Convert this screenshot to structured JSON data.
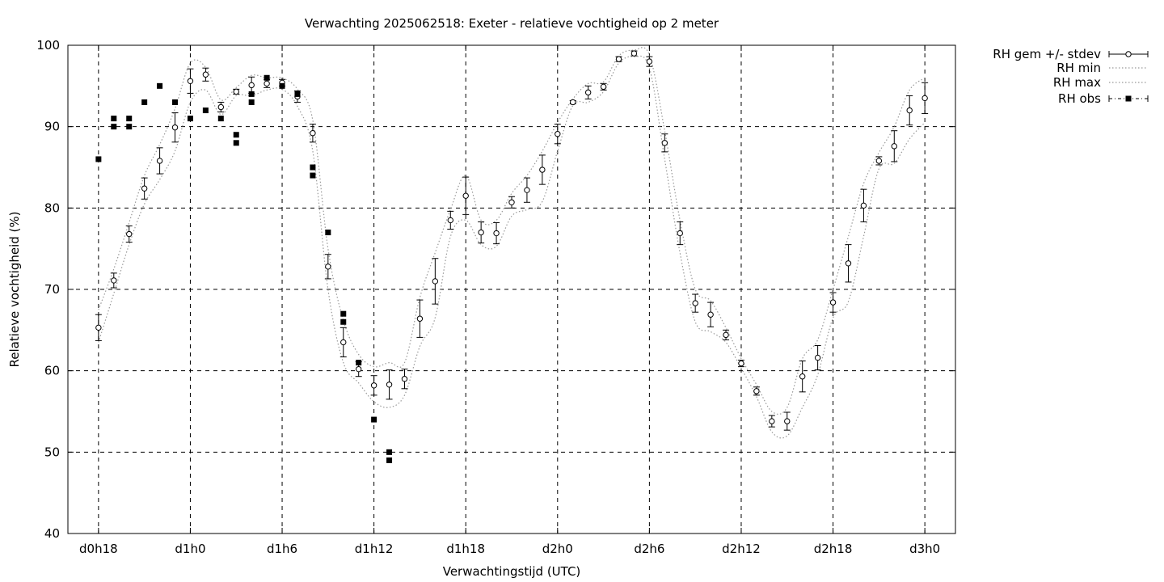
{
  "chart_data": {
    "type": "line",
    "title": "Verwachting 2025062518: Exeter - relatieve vochtigheid op 2 meter",
    "xlabel": "Verwachtingstijd (UTC)",
    "ylabel": "Relatieve vochtigheid (%)",
    "ylim": [
      40,
      100
    ],
    "yticks": [
      40,
      50,
      60,
      70,
      80,
      90,
      100
    ],
    "xlim": [
      -2,
      56
    ],
    "xticks": [
      {
        "x": 0,
        "label": "d0h18"
      },
      {
        "x": 6,
        "label": "d1h0"
      },
      {
        "x": 12,
        "label": "d1h6"
      },
      {
        "x": 18,
        "label": "d1h12"
      },
      {
        "x": 24,
        "label": "d1h18"
      },
      {
        "x": 30,
        "label": "d2h0"
      },
      {
        "x": 36,
        "label": "d2h6"
      },
      {
        "x": 42,
        "label": "d2h12"
      },
      {
        "x": 48,
        "label": "d2h18"
      },
      {
        "x": 54,
        "label": "d3h0"
      }
    ],
    "grid": true,
    "legend_position": "outside-top-right",
    "series": [
      {
        "name": "RH gem +/- stdev",
        "style": "errorbars",
        "color": "#000000",
        "x": [
          0,
          1,
          2,
          3,
          4,
          5,
          6,
          7,
          8,
          9,
          10,
          11,
          12,
          13,
          14,
          15,
          16,
          17,
          18,
          19,
          20,
          21,
          22,
          23,
          24,
          25,
          26,
          27,
          28,
          29,
          30,
          31,
          32,
          33,
          34,
          35,
          36,
          37,
          38,
          39,
          40,
          41,
          42,
          43,
          44,
          45,
          46,
          47,
          48,
          49,
          50,
          51,
          52,
          53,
          54
        ],
        "mean": [
          65.3,
          71.1,
          76.8,
          82.4,
          85.8,
          89.9,
          95.6,
          96.4,
          92.4,
          94.3,
          95.1,
          95.3,
          95.4,
          93.7,
          89.2,
          72.8,
          63.5,
          60.2,
          58.2,
          58.3,
          59.0,
          66.4,
          71.0,
          78.5,
          81.5,
          77.0,
          76.9,
          80.7,
          82.2,
          84.7,
          89.1,
          93.0,
          94.2,
          94.9,
          98.3,
          99.0,
          98.0,
          88.0,
          76.9,
          68.3,
          66.9,
          64.4,
          60.9,
          57.5,
          53.8,
          53.8,
          59.3,
          61.6,
          68.4,
          73.2,
          80.3,
          85.8,
          87.6,
          92.0,
          93.5
        ],
        "stdev": [
          1.6,
          0.9,
          1.0,
          1.3,
          1.6,
          1.8,
          1.5,
          0.8,
          0.6,
          0.3,
          1.0,
          0.5,
          0.4,
          0.7,
          1.1,
          1.5,
          1.8,
          0.9,
          1.2,
          1.8,
          1.2,
          2.3,
          2.8,
          1.1,
          2.3,
          1.3,
          1.3,
          0.7,
          1.5,
          1.8,
          1.2,
          0.2,
          0.8,
          0.4,
          0.3,
          0.3,
          0.6,
          1.1,
          1.4,
          1.1,
          1.5,
          0.6,
          0.4,
          0.5,
          0.7,
          1.1,
          1.9,
          1.5,
          1.2,
          2.3,
          2.0,
          0.5,
          1.9,
          1.8,
          1.9
        ]
      },
      {
        "name": "RH min",
        "style": "dotted",
        "color": "#999999",
        "x": [
          0,
          1,
          2,
          3,
          4,
          5,
          6,
          7,
          8,
          9,
          10,
          11,
          12,
          13,
          14,
          15,
          16,
          17,
          18,
          19,
          20,
          21,
          22,
          23,
          24,
          25,
          26,
          27,
          28,
          29,
          30,
          31,
          32,
          33,
          34,
          35,
          36,
          37,
          38,
          39,
          40,
          41,
          42,
          43,
          44,
          45,
          46,
          47,
          48,
          49,
          50,
          51,
          52,
          53,
          54
        ],
        "values": [
          63.5,
          69.5,
          75.5,
          80.5,
          83.5,
          87.0,
          93.0,
          94.5,
          91.5,
          93.8,
          93.8,
          94.5,
          94.6,
          92.5,
          87.0,
          70.0,
          61.0,
          58.5,
          56.2,
          55.5,
          57.0,
          63.0,
          66.5,
          76.5,
          78.5,
          75.5,
          75.3,
          79.0,
          79.8,
          80.8,
          87.0,
          92.6,
          93.0,
          94.3,
          97.8,
          98.6,
          97.2,
          86.0,
          74.5,
          66.0,
          64.8,
          63.5,
          60.3,
          56.8,
          52.5,
          52.0,
          55.5,
          59.5,
          66.5,
          68.5,
          76.5,
          84.8,
          85.5,
          88.5,
          90.5
        ]
      },
      {
        "name": "RH max",
        "style": "dotted",
        "color": "#999999",
        "x": [
          0,
          1,
          2,
          3,
          4,
          5,
          6,
          7,
          8,
          9,
          10,
          11,
          12,
          13,
          14,
          15,
          16,
          17,
          18,
          19,
          20,
          21,
          22,
          23,
          24,
          25,
          26,
          27,
          28,
          29,
          30,
          31,
          32,
          33,
          34,
          35,
          36,
          37,
          38,
          39,
          40,
          41,
          42,
          43,
          44,
          45,
          46,
          47,
          48,
          49,
          50,
          51,
          52,
          53,
          54
        ],
        "values": [
          67.5,
          72.5,
          78.2,
          84.0,
          87.8,
          92.2,
          97.8,
          97.3,
          93.3,
          94.8,
          96.3,
          96.0,
          96.0,
          94.6,
          90.8,
          75.0,
          66.2,
          62.0,
          60.5,
          61.0,
          61.0,
          69.0,
          74.5,
          79.8,
          84.0,
          78.5,
          78.5,
          81.8,
          84.0,
          87.0,
          90.5,
          93.4,
          95.3,
          95.5,
          98.7,
          99.4,
          98.8,
          89.5,
          78.5,
          70.0,
          68.6,
          65.3,
          61.5,
          58.3,
          55.0,
          55.5,
          61.5,
          63.8,
          70.0,
          76.5,
          83.0,
          86.8,
          90.0,
          94.5,
          96.0
        ]
      },
      {
        "name": "RH obs",
        "style": "points",
        "color": "#000000",
        "points": [
          {
            "x": 0,
            "y": 86
          },
          {
            "x": 1,
            "y": 90
          },
          {
            "x": 1,
            "y": 91
          },
          {
            "x": 2,
            "y": 90
          },
          {
            "x": 2,
            "y": 91
          },
          {
            "x": 3,
            "y": 93
          },
          {
            "x": 4,
            "y": 95
          },
          {
            "x": 5,
            "y": 93
          },
          {
            "x": 6,
            "y": 91
          },
          {
            "x": 7,
            "y": 92
          },
          {
            "x": 8,
            "y": 91
          },
          {
            "x": 9,
            "y": 88
          },
          {
            "x": 9,
            "y": 89
          },
          {
            "x": 10,
            "y": 93
          },
          {
            "x": 10,
            "y": 94
          },
          {
            "x": 11,
            "y": 96
          },
          {
            "x": 12,
            "y": 95
          },
          {
            "x": 13,
            "y": 94
          },
          {
            "x": 14,
            "y": 84
          },
          {
            "x": 14,
            "y": 85
          },
          {
            "x": 15,
            "y": 77
          },
          {
            "x": 16,
            "y": 66
          },
          {
            "x": 16,
            "y": 67
          },
          {
            "x": 17,
            "y": 61
          },
          {
            "x": 18,
            "y": 54
          },
          {
            "x": 19,
            "y": 49
          },
          {
            "x": 19,
            "y": 50
          }
        ]
      }
    ]
  }
}
